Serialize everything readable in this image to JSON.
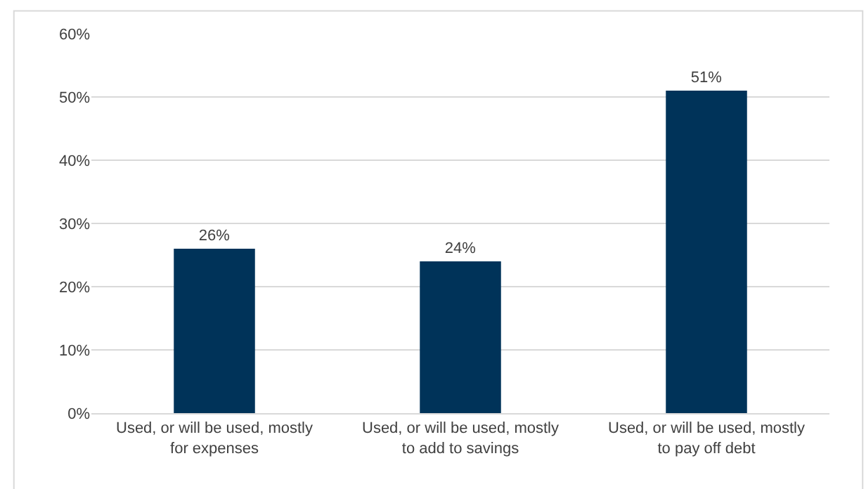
{
  "chart_data": {
    "type": "bar",
    "categories": [
      "Used, or will be used, mostly for expenses",
      "Used, or will be used, mostly to add to savings",
      "Used, or will be used, mostly to pay off debt"
    ],
    "values": [
      26,
      24,
      51
    ],
    "color": "#003359",
    "value_labels": [
      "26%",
      "24%",
      "51%"
    ],
    "ylim": [
      0,
      60
    ],
    "yticks": [
      {
        "value": 0,
        "label": "0%"
      },
      {
        "value": 10,
        "label": "10%"
      },
      {
        "value": 20,
        "label": "20%"
      },
      {
        "value": 30,
        "label": "30%"
      },
      {
        "value": 40,
        "label": "40%"
      },
      {
        "value": 50,
        "label": "50%"
      },
      {
        "value": 60,
        "label": "60%"
      }
    ],
    "grid": "y",
    "legend": false
  }
}
